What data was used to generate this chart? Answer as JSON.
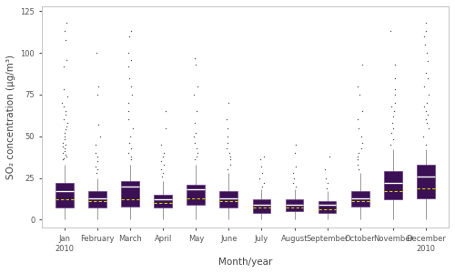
{
  "months": [
    "Jan\n2010",
    "February",
    "March",
    "April",
    "May",
    "June",
    "July",
    "August",
    "September",
    "October",
    "November",
    "December\n2010"
  ],
  "box_stats": {
    "Jan\n2010": {
      "q1": 7,
      "median": 17,
      "mean": 12,
      "q3": 22,
      "whislo": 0,
      "whishi": 33,
      "fliers": [
        36,
        37,
        38,
        39,
        40,
        41,
        43,
        44,
        45,
        46,
        48,
        50,
        52,
        54,
        56,
        58,
        60,
        63,
        65,
        68,
        70,
        74,
        78,
        92,
        96,
        108,
        113,
        118
      ]
    },
    "February": {
      "q1": 7,
      "median": 13,
      "mean": 11,
      "q3": 17,
      "whislo": 0,
      "whishi": 25,
      "fliers": [
        28,
        30,
        32,
        35,
        38,
        40,
        45,
        50,
        57,
        75,
        80,
        100
      ]
    },
    "March": {
      "q1": 8,
      "median": 20,
      "mean": 12,
      "q3": 23,
      "whislo": 0,
      "whishi": 33,
      "fliers": [
        36,
        38,
        40,
        43,
        46,
        50,
        55,
        60,
        65,
        70,
        75,
        80,
        85,
        92,
        96,
        100,
        110,
        113
      ]
    },
    "April": {
      "q1": 7,
      "median": 12,
      "mean": 10,
      "q3": 15,
      "whislo": 0,
      "whishi": 23,
      "fliers": [
        26,
        28,
        30,
        33,
        35,
        38,
        40,
        45,
        55,
        65
      ]
    },
    "May": {
      "q1": 9,
      "median": 18,
      "mean": 13,
      "q3": 21,
      "whislo": 0,
      "whishi": 33,
      "fliers": [
        36,
        38,
        40,
        43,
        46,
        50,
        52,
        58,
        65,
        75,
        80,
        93,
        97
      ]
    },
    "June": {
      "q1": 7,
      "median": 13,
      "mean": 11,
      "q3": 17,
      "whislo": 0,
      "whishi": 28,
      "fliers": [
        30,
        33,
        36,
        38,
        40,
        43,
        46,
        50,
        55,
        60,
        70
      ]
    },
    "July": {
      "q1": 4,
      "median": 9,
      "mean": 7,
      "q3": 12,
      "whislo": 0,
      "whishi": 18,
      "fliers": [
        20,
        22,
        25,
        28,
        32,
        36,
        38
      ]
    },
    "August": {
      "q1": 5,
      "median": 9,
      "mean": 7,
      "q3": 12,
      "whislo": 0,
      "whishi": 18,
      "fliers": [
        20,
        22,
        25,
        28,
        32,
        40,
        45
      ]
    },
    "September": {
      "q1": 4,
      "median": 9,
      "mean": 6,
      "q3": 11,
      "whislo": 0,
      "whishi": 17,
      "fliers": [
        19,
        22,
        25,
        30,
        38
      ]
    },
    "October": {
      "q1": 8,
      "median": 13,
      "mean": 11,
      "q3": 17,
      "whislo": 0,
      "whishi": 28,
      "fliers": [
        30,
        33,
        36,
        38,
        40,
        43,
        46,
        50,
        55,
        60,
        65,
        75,
        80,
        93
      ]
    },
    "November": {
      "q1": 12,
      "median": 22,
      "mean": 17,
      "q3": 29,
      "whislo": 0,
      "whishi": 42,
      "fliers": [
        45,
        48,
        52,
        55,
        58,
        62,
        65,
        68,
        70,
        75,
        78,
        85,
        93,
        113
      ]
    },
    "December\n2010": {
      "q1": 13,
      "median": 26,
      "mean": 19,
      "q3": 33,
      "whislo": 0,
      "whishi": 42,
      "fliers": [
        45,
        50,
        55,
        58,
        60,
        63,
        65,
        68,
        70,
        75,
        80,
        85,
        88,
        95,
        100,
        105,
        110,
        113,
        118
      ]
    }
  },
  "box_color": "#3b1054",
  "box_edge_color": "#5a2d7a",
  "median_color": "#ffffff",
  "mean_color": "#d4d400",
  "whisker_color": "#999999",
  "flier_color": "#555555",
  "xlabel": "Month/year",
  "ylabel": "SO₂ concentration (μg/m³)",
  "ylim": [
    -5,
    128
  ],
  "yticks": [
    0,
    25,
    50,
    75,
    100,
    125
  ],
  "background_color": "#ffffff",
  "label_fontsize": 7.5,
  "tick_fontsize": 6.0,
  "box_width": 0.55
}
